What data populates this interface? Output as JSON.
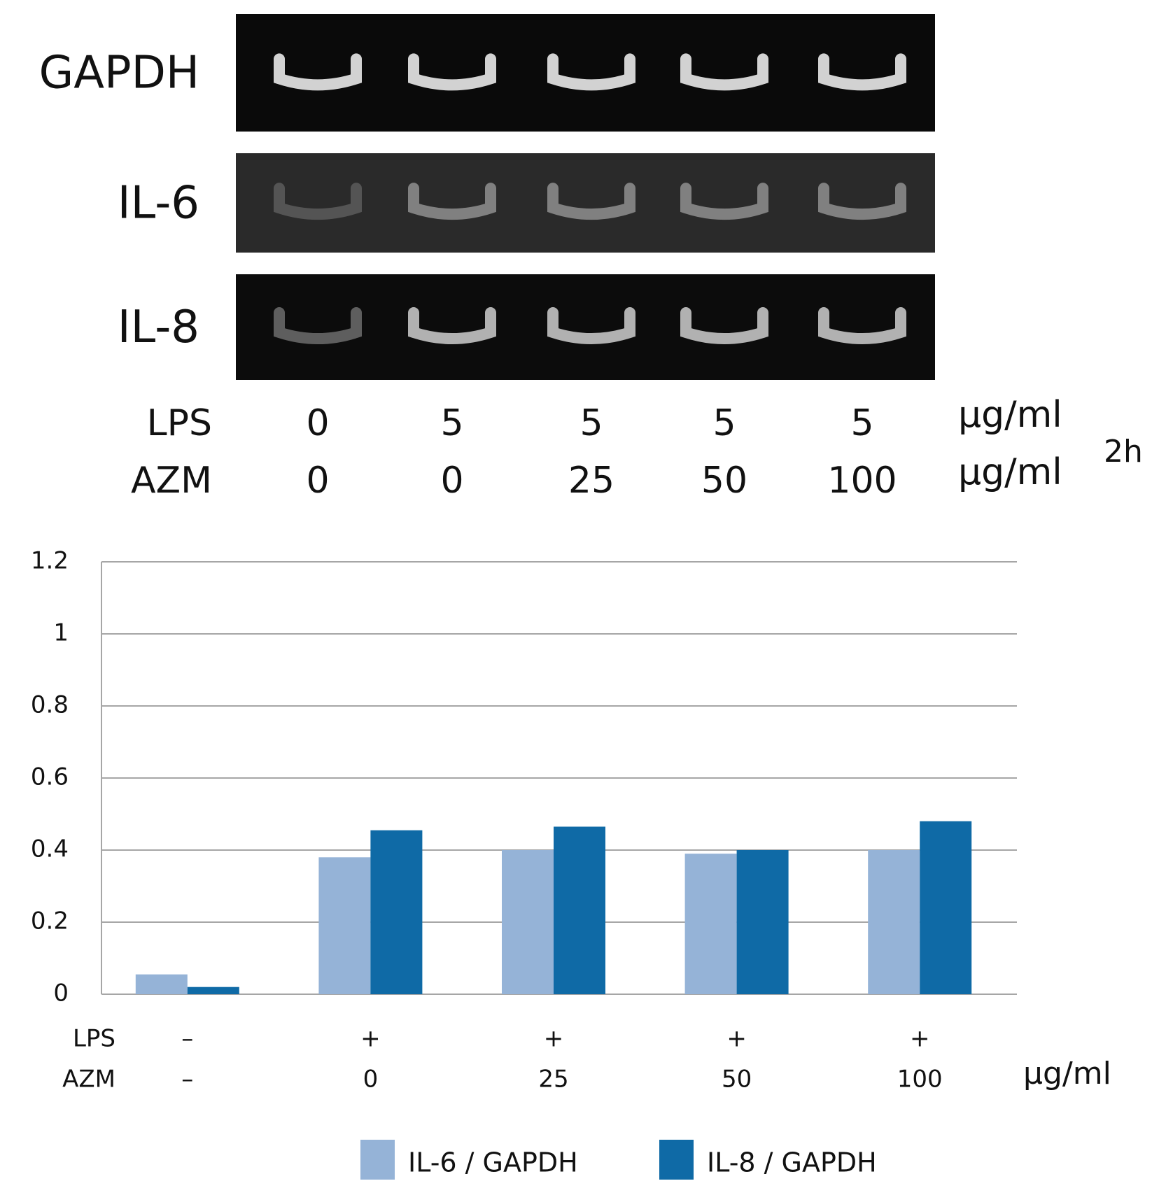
{
  "gel": {
    "rows": [
      "GAPDH",
      "IL-6",
      "IL-8"
    ],
    "conditions": [
      {
        "label": "LPS",
        "values": [
          "0",
          "5",
          "5",
          "5",
          "5"
        ],
        "unit": "µg/ml"
      },
      {
        "label": "AZM",
        "values": [
          "0",
          "0",
          "25",
          "50",
          "100"
        ],
        "unit": "µg/ml"
      }
    ],
    "time": "2h"
  },
  "chart_data": {
    "type": "bar",
    "row_labels": [
      "LPS",
      "AZM"
    ],
    "categories": [
      [
        "–",
        "–"
      ],
      [
        "+",
        "0"
      ],
      [
        "+",
        "25"
      ],
      [
        "+",
        "50"
      ],
      [
        "+",
        "100"
      ]
    ],
    "x_unit": "µg/ml",
    "series": [
      {
        "name": "IL-6 / GAPDH",
        "color": "#95b3d7",
        "values": [
          0.055,
          0.38,
          0.4,
          0.39,
          0.4
        ]
      },
      {
        "name": "IL-8 / GAPDH",
        "color": "#0f6aa6",
        "values": [
          0.02,
          0.455,
          0.465,
          0.4,
          0.48
        ]
      }
    ],
    "ylim": [
      0,
      1.2
    ],
    "yticks": [
      0,
      0.2,
      0.4,
      0.6,
      0.8,
      1,
      1.2
    ],
    "grid": true,
    "legend": "bottom"
  }
}
